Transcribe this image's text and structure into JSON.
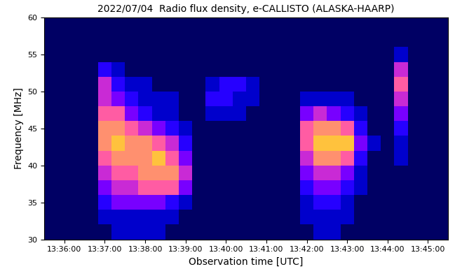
{
  "chart_data": {
    "type": "heatmap",
    "title": "2022/07/04  Radio flux density, e-CALLISTO (ALASKA-HAARP)",
    "x_label": "Observation time [UTC]",
    "y_label": "Frequency [MHz]",
    "xlim": [
      48930,
      49530
    ],
    "xticks": [
      {
        "value": 48960,
        "label": "13:36:00"
      },
      {
        "value": 49020,
        "label": "13:37:00"
      },
      {
        "value": 49080,
        "label": "13:38:00"
      },
      {
        "value": 49140,
        "label": "13:39:00"
      },
      {
        "value": 49200,
        "label": "13:40:00"
      },
      {
        "value": 49260,
        "label": "13:41:00"
      },
      {
        "value": 49320,
        "label": "13:42:00"
      },
      {
        "value": 49380,
        "label": "13:43:00"
      },
      {
        "value": 49440,
        "label": "13:44:00"
      },
      {
        "value": 49500,
        "label": "13:45:00"
      }
    ],
    "ylim": [
      30,
      60
    ],
    "yticks": [
      30,
      35,
      40,
      45,
      50,
      55,
      60
    ],
    "x_edges": [
      48930,
      48950,
      48970,
      48990,
      49010,
      49030,
      49050,
      49070,
      49090,
      49110,
      49130,
      49150,
      49170,
      49190,
      49210,
      49230,
      49250,
      49270,
      49290,
      49310,
      49330,
      49350,
      49370,
      49390,
      49410,
      49430,
      49450,
      49470,
      49490,
      49510,
      49530
    ],
    "y_edges": [
      30,
      32,
      34,
      36,
      38,
      40,
      42,
      44,
      46,
      48,
      50,
      52,
      54,
      56,
      58,
      60
    ],
    "clim": [
      1,
      11
    ],
    "cells": [
      [
        2,
        2,
        2,
        2,
        2,
        3,
        3,
        3,
        3,
        2,
        2,
        2,
        2,
        2,
        2,
        2,
        2,
        2,
        2,
        2,
        3,
        3,
        2,
        2,
        2,
        2,
        2,
        2,
        2,
        2
      ],
      [
        2,
        2,
        2,
        2,
        3,
        3,
        3,
        3,
        3,
        3,
        2,
        2,
        2,
        2,
        2,
        2,
        2,
        2,
        2,
        3,
        3,
        3,
        3,
        2,
        2,
        2,
        2,
        2,
        2,
        2
      ],
      [
        2,
        2,
        2,
        2,
        4,
        5,
        5,
        5,
        5,
        4,
        3,
        2,
        2,
        2,
        2,
        2,
        2,
        2,
        2,
        3,
        4,
        4,
        3,
        2,
        2,
        2,
        2,
        2,
        2,
        2
      ],
      [
        2,
        2,
        2,
        2,
        5,
        6,
        6,
        7,
        7,
        7,
        5,
        2,
        2,
        2,
        2,
        2,
        2,
        2,
        2,
        4,
        5,
        5,
        4,
        3,
        2,
        2,
        2,
        2,
        2,
        2
      ],
      [
        2,
        2,
        2,
        2,
        6,
        7,
        7,
        8,
        8,
        8,
        6,
        2,
        2,
        2,
        2,
        2,
        2,
        2,
        2,
        5,
        6,
        6,
        5,
        3,
        2,
        2,
        2,
        2,
        2,
        2
      ],
      [
        2,
        2,
        2,
        2,
        7,
        8,
        8,
        8,
        9,
        7,
        5,
        2,
        2,
        2,
        2,
        2,
        2,
        2,
        2,
        6,
        8,
        8,
        7,
        4,
        2,
        2,
        3,
        2,
        2,
        2
      ],
      [
        2,
        2,
        2,
        2,
        8,
        9,
        8,
        8,
        7,
        6,
        4,
        2,
        2,
        2,
        2,
        2,
        2,
        2,
        2,
        7,
        9,
        9,
        9,
        5,
        3,
        2,
        3,
        2,
        2,
        2
      ],
      [
        2,
        2,
        2,
        2,
        8,
        8,
        7,
        6,
        5,
        4,
        3,
        2,
        2,
        2,
        2,
        2,
        2,
        2,
        2,
        7,
        8,
        8,
        7,
        4,
        2,
        2,
        4,
        2,
        2,
        2
      ],
      [
        2,
        2,
        2,
        2,
        7,
        7,
        5,
        4,
        3,
        3,
        2,
        2,
        3,
        3,
        3,
        2,
        2,
        2,
        2,
        5,
        6,
        5,
        4,
        3,
        2,
        2,
        5,
        2,
        2,
        2
      ],
      [
        2,
        2,
        2,
        2,
        6,
        5,
        4,
        3,
        3,
        3,
        2,
        2,
        4,
        4,
        3,
        3,
        2,
        2,
        2,
        3,
        3,
        3,
        3,
        2,
        2,
        2,
        6,
        2,
        2,
        2
      ],
      [
        2,
        2,
        2,
        2,
        6,
        4,
        3,
        3,
        2,
        2,
        2,
        2,
        3,
        4,
        4,
        3,
        2,
        2,
        2,
        2,
        2,
        2,
        2,
        2,
        2,
        2,
        7,
        2,
        2,
        2
      ],
      [
        2,
        2,
        2,
        2,
        4,
        3,
        2,
        2,
        2,
        2,
        2,
        2,
        2,
        2,
        2,
        2,
        2,
        2,
        2,
        2,
        2,
        2,
        2,
        2,
        2,
        2,
        6,
        2,
        2,
        2
      ],
      [
        2,
        2,
        2,
        2,
        2,
        2,
        2,
        2,
        2,
        2,
        2,
        2,
        2,
        2,
        2,
        2,
        2,
        2,
        2,
        2,
        2,
        2,
        2,
        2,
        2,
        2,
        3,
        2,
        2,
        2
      ],
      [
        2,
        2,
        2,
        2,
        2,
        2,
        2,
        2,
        2,
        2,
        2,
        2,
        2,
        2,
        2,
        2,
        2,
        2,
        2,
        2,
        2,
        2,
        2,
        2,
        2,
        2,
        2,
        2,
        2,
        2
      ],
      [
        2,
        2,
        2,
        2,
        2,
        2,
        2,
        2,
        2,
        2,
        2,
        2,
        2,
        2,
        2,
        2,
        2,
        2,
        2,
        2,
        2,
        2,
        2,
        2,
        2,
        2,
        2,
        2,
        2,
        2
      ]
    ],
    "grid": false
  }
}
